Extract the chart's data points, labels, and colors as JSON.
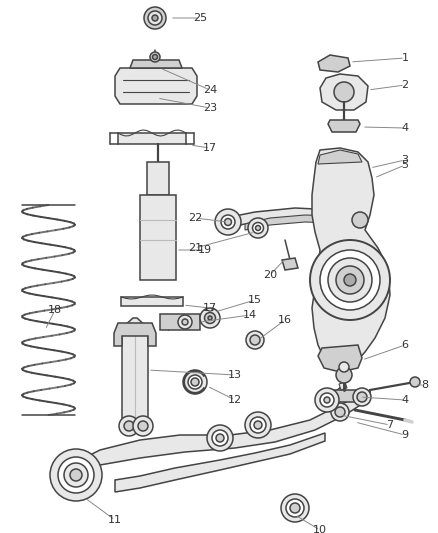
{
  "bg_color": "#ffffff",
  "line_color": "#444444",
  "fill_light": "#e8e8e8",
  "fill_mid": "#d0d0d0",
  "fill_dark": "#aaaaaa",
  "label_color": "#333333",
  "leader_color": "#888888"
}
